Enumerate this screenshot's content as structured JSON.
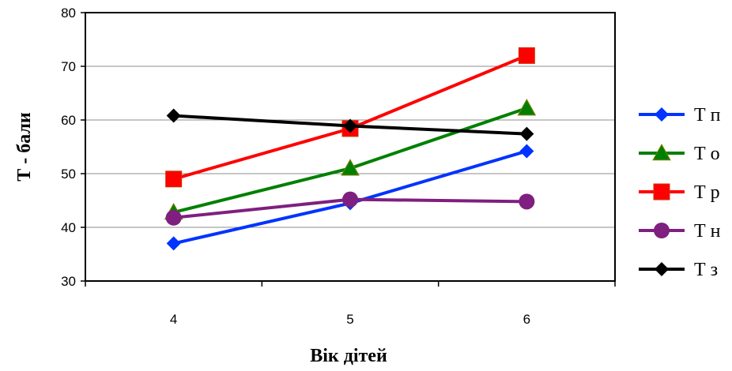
{
  "chart_data": {
    "type": "line",
    "xlabel": "Вік дітей",
    "ylabel": "Т - бали",
    "categories": [
      "4",
      "5",
      "6"
    ],
    "ylim": [
      30,
      80
    ],
    "yticks": [
      "30",
      "40",
      "50",
      "60",
      "70",
      "80"
    ],
    "grid": "horizontal",
    "legend_position": "right",
    "series": [
      {
        "name": "Т п",
        "values": [
          37,
          44.5,
          54.2
        ],
        "color": "#0033ff",
        "marker": "diamond"
      },
      {
        "name": "Т о",
        "values": [
          42.8,
          51,
          62.2
        ],
        "color": "#008000",
        "marker": "triangle"
      },
      {
        "name": "Т р",
        "values": [
          49,
          58.4,
          72
        ],
        "color": "#ff0000",
        "marker": "square"
      },
      {
        "name": "Т н",
        "values": [
          41.8,
          45.2,
          44.8
        ],
        "color": "#7f1f7f",
        "marker": "circle"
      },
      {
        "name": "Т з",
        "values": [
          60.8,
          58.9,
          57.4
        ],
        "color": "#000000",
        "marker": "diamond"
      }
    ]
  }
}
